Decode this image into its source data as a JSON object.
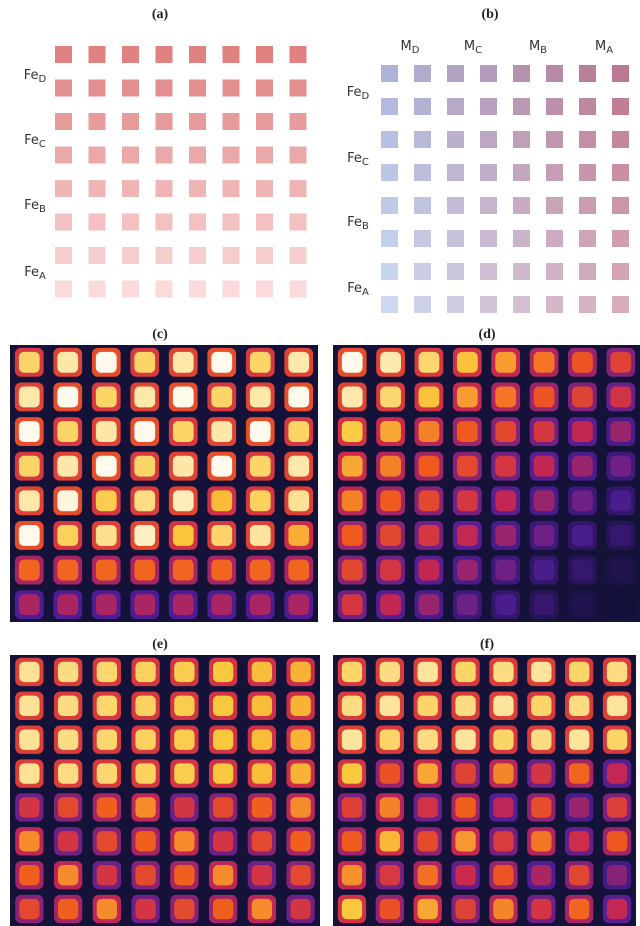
{
  "panels": [
    {
      "label": "(a)",
      "rows": [
        {
          "base": "Fe",
          "sub": "D"
        },
        {
          "base": "Fe",
          "sub": "C"
        },
        {
          "base": "Fe",
          "sub": "B"
        },
        {
          "base": "Fe",
          "sub": "A"
        }
      ]
    },
    {
      "label": "(b)",
      "rows": [
        {
          "base": "Fe",
          "sub": "D"
        },
        {
          "base": "Fe",
          "sub": "C"
        },
        {
          "base": "Fe",
          "sub": "B"
        },
        {
          "base": "Fe",
          "sub": "A"
        }
      ],
      "columns": [
        {
          "base": "M",
          "sub": "D"
        },
        {
          "base": "M",
          "sub": "C"
        },
        {
          "base": "M",
          "sub": "B"
        },
        {
          "base": "M",
          "sub": "A"
        }
      ]
    },
    {
      "label": "(c)"
    },
    {
      "label": "(d)"
    },
    {
      "label": "(e)"
    },
    {
      "label": "(f)"
    }
  ]
}
